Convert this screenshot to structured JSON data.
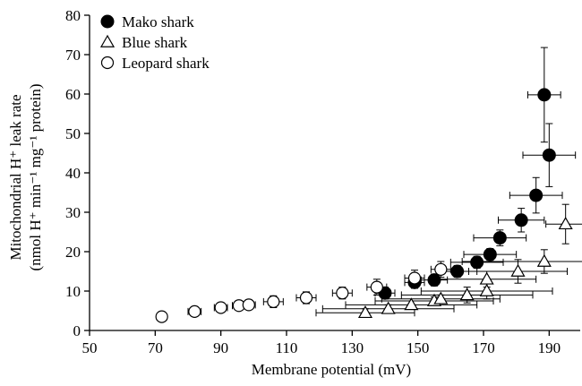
{
  "chart_data": {
    "type": "scatter",
    "title": "",
    "xlabel": "Membrane potential (mV)",
    "ylabel_line1": "Mitochondrial H⁺ leak rate",
    "ylabel_line2": "(nmol H⁺ min⁻¹ mg⁻¹ protein)",
    "xlim": [
      50,
      200
    ],
    "ylim": [
      0,
      80
    ],
    "xticks": [
      50,
      70,
      90,
      110,
      130,
      150,
      170,
      190
    ],
    "yticks": [
      0,
      10,
      20,
      30,
      40,
      50,
      60,
      70,
      80
    ],
    "grid": false,
    "legend_position": "top-left",
    "series": [
      {
        "name": "Mako shark",
        "marker": "filled-circle",
        "points": [
          {
            "x": 140,
            "y": 9.5,
            "xerr": 3,
            "yerr": 1.5
          },
          {
            "x": 149,
            "y": 12.2,
            "xerr": 3,
            "yerr": 1.5
          },
          {
            "x": 155,
            "y": 12.8,
            "xerr": 4,
            "yerr": 1.5
          },
          {
            "x": 162,
            "y": 15,
            "xerr": 6,
            "yerr": 1.5
          },
          {
            "x": 168,
            "y": 17.3,
            "xerr": 8,
            "yerr": 1.5
          },
          {
            "x": 172,
            "y": 19.3,
            "xerr": 8,
            "yerr": 1.5
          },
          {
            "x": 175,
            "y": 23.5,
            "xerr": 8,
            "yerr": 2
          },
          {
            "x": 181.5,
            "y": 28,
            "xerr": 7,
            "yerr": 3
          },
          {
            "x": 186,
            "y": 34.3,
            "xerr": 8,
            "yerr": 4.5
          },
          {
            "x": 190,
            "y": 44.5,
            "xerr": 8,
            "yerr": 8
          },
          {
            "x": 188.5,
            "y": 59.8,
            "xerr": 5,
            "yerr": 12
          }
        ]
      },
      {
        "name": "Blue shark",
        "marker": "open-triangle",
        "points": [
          {
            "x": 134,
            "y": 4.5,
            "xerr": 15,
            "yerr": 1
          },
          {
            "x": 141,
            "y": 5.5,
            "xerr": 20,
            "yerr": 1
          },
          {
            "x": 148,
            "y": 6.5,
            "xerr": 20,
            "yerr": 1
          },
          {
            "x": 155,
            "y": 7.5,
            "xerr": 18,
            "yerr": 1
          },
          {
            "x": 157,
            "y": 8,
            "xerr": 18,
            "yerr": 1
          },
          {
            "x": 165,
            "y": 9,
            "xerr": 20,
            "yerr": 2
          },
          {
            "x": 171,
            "y": 10,
            "xerr": 20,
            "yerr": 2
          },
          {
            "x": 171,
            "y": 13,
            "xerr": 15,
            "yerr": 2
          },
          {
            "x": 180.5,
            "y": 15,
            "xerr": 15,
            "yerr": 3
          },
          {
            "x": 188.5,
            "y": 17.5,
            "xerr": 25,
            "yerr": 3
          },
          {
            "x": 195,
            "y": 27,
            "xerr": 6,
            "yerr": 5
          }
        ]
      },
      {
        "name": "Leopard shark",
        "marker": "open-circle",
        "points": [
          {
            "x": 72,
            "y": 3.5,
            "xerr": 1.5,
            "yerr": 1
          },
          {
            "x": 82,
            "y": 4.8,
            "xerr": 2,
            "yerr": 1
          },
          {
            "x": 90,
            "y": 5.8,
            "xerr": 2,
            "yerr": 1
          },
          {
            "x": 95.5,
            "y": 6.3,
            "xerr": 2,
            "yerr": 1
          },
          {
            "x": 98.5,
            "y": 6.5,
            "xerr": 2,
            "yerr": 1
          },
          {
            "x": 106,
            "y": 7.3,
            "xerr": 3,
            "yerr": 1.5
          },
          {
            "x": 116,
            "y": 8.3,
            "xerr": 3,
            "yerr": 1.5
          },
          {
            "x": 127,
            "y": 9.5,
            "xerr": 3,
            "yerr": 1.5
          },
          {
            "x": 137.5,
            "y": 11,
            "xerr": 3,
            "yerr": 2
          },
          {
            "x": 149,
            "y": 13.3,
            "xerr": 3,
            "yerr": 2
          },
          {
            "x": 157,
            "y": 15.5,
            "xerr": 3,
            "yerr": 2
          }
        ]
      }
    ]
  }
}
